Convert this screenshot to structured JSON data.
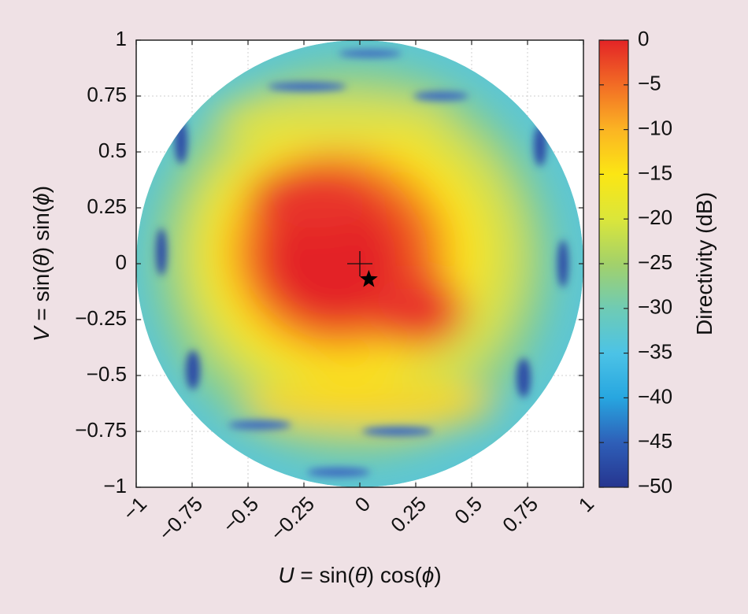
{
  "chart_data": {
    "type": "heatmap",
    "title": "",
    "xlabel": {
      "var": "U",
      "rest": " = sin(",
      "theta": "θ",
      "mid": ") cos(",
      "phi": "ϕ",
      "end": ")"
    },
    "ylabel": {
      "var": "V",
      "rest": " = sin(",
      "theta": "θ",
      "mid": ") sin(",
      "phi": "ϕ",
      "end": ")"
    },
    "xlim": [
      -1,
      1
    ],
    "ylim": [
      -1,
      1
    ],
    "x_ticks": [
      -1,
      -0.75,
      -0.5,
      -0.25,
      0,
      0.25,
      0.5,
      0.75,
      1
    ],
    "x_tick_labels": [
      "−1",
      "−0.75",
      "−0.5",
      "−0.25",
      "0",
      "0.25",
      "0.5",
      "0.75",
      "1"
    ],
    "y_ticks": [
      1,
      0.75,
      0.5,
      0.25,
      0,
      -0.25,
      -0.5,
      -0.75,
      -1
    ],
    "y_tick_labels": [
      "1",
      "0.75",
      "0.5",
      "0.25",
      "0",
      "−0.25",
      "−0.5",
      "−0.75",
      "−1"
    ],
    "grid": true,
    "region": "unit disk (visible space)",
    "peak_region": {
      "center": [
        -0.05,
        -0.05
      ],
      "level_db": 0
    },
    "markers": [
      {
        "name": "crosshair",
        "shape": "plus",
        "x": 0.0,
        "y": 0.0
      },
      {
        "name": "star",
        "shape": "star",
        "x": 0.04,
        "y": -0.07
      }
    ],
    "colorbar": {
      "label": "Directivity (dB)",
      "range": [
        -50,
        0
      ],
      "ticks": [
        0,
        -5,
        -10,
        -15,
        -20,
        -25,
        -30,
        -35,
        -40,
        -45,
        -50
      ],
      "tick_labels": [
        "0",
        "−5",
        "−10",
        "−15",
        "−20",
        "−25",
        "−30",
        "−35",
        "−40",
        "−45",
        "−50"
      ],
      "colormap": [
        "#26358f",
        "#2e5fb8",
        "#27a6e0",
        "#4cc3e6",
        "#6fcbb4",
        "#a3d16a",
        "#dbe63a",
        "#fbe614",
        "#fbb423",
        "#f26c25",
        "#e32426"
      ]
    }
  }
}
